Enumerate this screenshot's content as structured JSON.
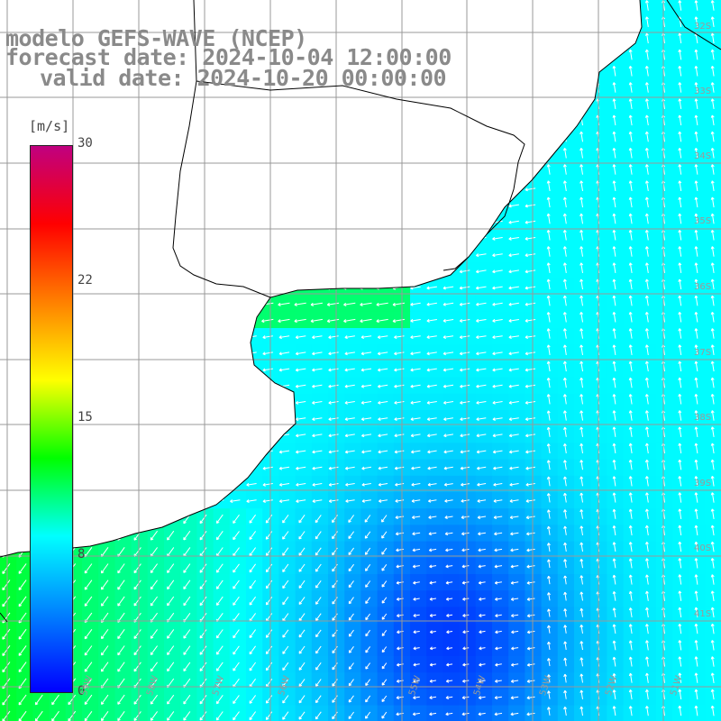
{
  "title": {
    "line1": "modelo GEFS-WAVE (NCEP)",
    "line2": "forecast date: 2024-10-04 12:00:00",
    "line3": "valid date: 2024-10-20 00:00:00"
  },
  "colorbar": {
    "unit": "[m/s]",
    "ticks": [
      "30",
      "22",
      "15",
      "8",
      "0"
    ],
    "tick_values": [
      30,
      22,
      15,
      8,
      0
    ],
    "min": 0,
    "max": 30,
    "colors": [
      "#0000ff",
      "#0080ff",
      "#00ffff",
      "#00ff00",
      "#ffff00",
      "#ff8000",
      "#ff0000",
      "#c00080"
    ]
  },
  "grid": {
    "lat_labels": [
      "32S",
      "33S",
      "34S",
      "35S",
      "36S",
      "37S",
      "38S",
      "39S",
      "40S",
      "41S"
    ],
    "lon_labels": [
      "59W",
      "58W",
      "57W",
      "56W",
      "55W",
      "54W",
      "53W",
      "52W",
      "51W"
    ]
  },
  "colors": {
    "land": "#ffffff",
    "grid": "#999999",
    "coast": "#000000",
    "arrow": "#ffffff"
  }
}
